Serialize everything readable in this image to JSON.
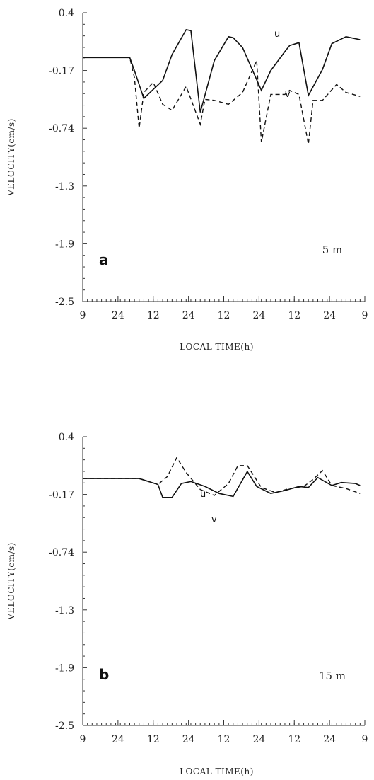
{
  "chart_data": [
    {
      "type": "line",
      "panel_label": "a",
      "depth_label": "5 m",
      "ylabel": "VELOCITY(cm/s)",
      "xlabel": "LOCAL TIME(h)",
      "y_ticks": [
        "0.4",
        "-0.17",
        "-0.74",
        "-1.3",
        "-1.9",
        "-2.5"
      ],
      "x_ticks": [
        "9",
        "24",
        "12",
        "24",
        "12",
        "24",
        "12",
        "24",
        "9"
      ],
      "ylim": [
        -2.5,
        0.4
      ],
      "grid": false,
      "series": [
        {
          "name": "u",
          "style": "solid",
          "x": [
            0,
            10,
            11,
            13,
            17,
            19,
            22,
            23,
            25,
            28,
            31,
            32,
            34,
            38,
            40,
            43,
            44,
            46,
            48,
            51,
            53,
            56,
            57,
            59
          ],
          "y": [
            -0.05,
            -0.05,
            -0.18,
            -0.46,
            -0.28,
            -0.02,
            0.23,
            0.22,
            -0.6,
            -0.08,
            0.16,
            0.15,
            0.05,
            -0.38,
            -0.18,
            0.01,
            0.07,
            0.1,
            -0.43,
            -0.17,
            0.09,
            0.16,
            0.15,
            0.13
          ]
        },
        {
          "name": "v",
          "style": "dashed",
          "x": [
            0,
            10,
            11,
            12,
            13,
            15,
            17,
            19,
            22,
            25,
            26,
            28,
            31,
            34,
            37,
            38,
            40,
            43,
            44,
            46,
            48,
            49,
            51,
            54,
            56,
            59
          ],
          "y": [
            -0.05,
            -0.05,
            -0.25,
            -0.76,
            -0.4,
            -0.3,
            -0.52,
            -0.58,
            -0.34,
            -0.72,
            -0.47,
            -0.48,
            -0.52,
            -0.4,
            -0.08,
            -0.9,
            -0.42,
            -0.42,
            -0.38,
            -0.42,
            -0.92,
            -0.48,
            -0.48,
            -0.32,
            -0.4,
            -0.44
          ]
        }
      ]
    },
    {
      "type": "line",
      "panel_label": "b",
      "depth_label": "15 m",
      "ylabel": "VELOCITY(cm/s)",
      "xlabel": "LOCAL TIME(h)",
      "y_ticks": [
        "0.4",
        "-0.17",
        "-0.74",
        "-1.3",
        "-1.9",
        "-2.5"
      ],
      "x_ticks": [
        "9",
        "24",
        "12",
        "24",
        "12",
        "24",
        "12",
        "24",
        "9"
      ],
      "ylim": [
        -2.5,
        0.4
      ],
      "grid": false,
      "series": [
        {
          "name": "u",
          "style": "solid",
          "x": [
            0,
            12,
            16,
            17,
            19,
            21,
            23,
            26,
            29,
            32,
            35,
            37,
            40,
            43,
            46,
            48,
            50,
            53,
            55,
            58,
            59
          ],
          "y": [
            -0.02,
            -0.02,
            -0.08,
            -0.21,
            -0.21,
            -0.07,
            -0.05,
            -0.1,
            -0.17,
            -0.2,
            0.05,
            -0.1,
            -0.17,
            -0.14,
            -0.1,
            -0.11,
            -0.01,
            -0.09,
            -0.06,
            -0.07,
            -0.09
          ]
        },
        {
          "name": "v",
          "style": "dashed",
          "x": [
            0,
            12,
            16,
            18,
            20,
            22,
            25,
            28,
            31,
            33,
            35,
            38,
            41,
            44,
            47,
            49,
            51,
            53,
            56,
            59
          ],
          "y": [
            -0.02,
            -0.02,
            -0.08,
            0.0,
            0.19,
            0.04,
            -0.13,
            -0.19,
            -0.07,
            0.11,
            0.11,
            -0.11,
            -0.16,
            -0.12,
            -0.1,
            -0.03,
            0.06,
            -0.09,
            -0.12,
            -0.17
          ]
        }
      ]
    }
  ]
}
